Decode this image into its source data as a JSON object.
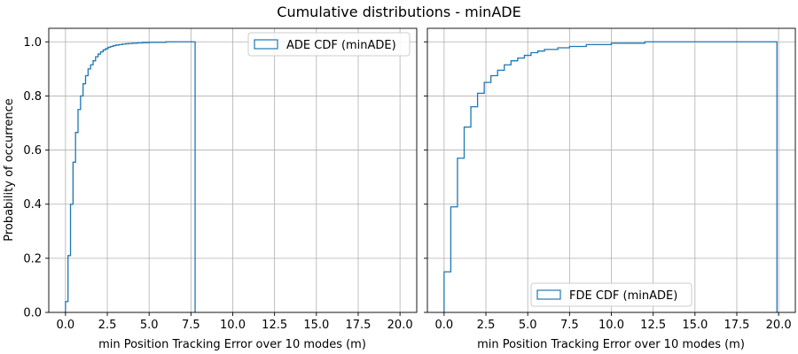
{
  "figure": {
    "title": "Cumulative distributions - minADE"
  },
  "chart_data": [
    {
      "type": "line",
      "step": "histogram-cdf",
      "xlabel": "min Position Tracking Error over 10 modes (m)",
      "ylabel": "Probability of occurrence",
      "xlim": [
        -1.0,
        21.0
      ],
      "ylim": [
        0,
        1.05
      ],
      "xticks": [
        0,
        2.5,
        5,
        7.5,
        10,
        12.5,
        15,
        17.5,
        20
      ],
      "xtick_labels": [
        "0.0",
        "2.5",
        "5.0",
        "7.5",
        "10.0",
        "12.5",
        "15.0",
        "17.5",
        "20.0"
      ],
      "yticks": [
        0,
        0.2,
        0.4,
        0.6,
        0.8,
        1.0
      ],
      "ytick_labels": [
        "0.0",
        "0.2",
        "0.4",
        "0.6",
        "0.8",
        "1.0"
      ],
      "grid": true,
      "legend": "upper right",
      "color": "#1f77b4",
      "series": [
        {
          "name": "ADE CDF (minADE)",
          "x": [
            0.0,
            0.15,
            0.3,
            0.45,
            0.6,
            0.75,
            0.9,
            1.05,
            1.2,
            1.35,
            1.5,
            1.65,
            1.8,
            1.95,
            2.1,
            2.25,
            2.4,
            2.55,
            2.7,
            2.85,
            3.0,
            3.2,
            3.4,
            3.6,
            3.8,
            4.0,
            4.3,
            4.6,
            5.0,
            6.0,
            7.75
          ],
          "y": [
            0.04,
            0.21,
            0.4,
            0.555,
            0.665,
            0.75,
            0.8,
            0.845,
            0.875,
            0.9,
            0.915,
            0.93,
            0.945,
            0.955,
            0.963,
            0.97,
            0.975,
            0.98,
            0.983,
            0.986,
            0.988,
            0.99,
            0.992,
            0.993,
            0.994,
            0.995,
            0.996,
            0.997,
            0.998,
            1.0,
            1.0
          ]
        }
      ]
    },
    {
      "type": "line",
      "step": "histogram-cdf",
      "xlabel": "min Position Tracking Error over 10 modes (m)",
      "ylabel": "",
      "xlim": [
        -1.0,
        21.0
      ],
      "ylim": [
        0,
        1.05
      ],
      "xticks": [
        0,
        2.5,
        5,
        7.5,
        10,
        12.5,
        15,
        17.5,
        20
      ],
      "xtick_labels": [
        "0.0",
        "2.5",
        "5.0",
        "7.5",
        "10.0",
        "12.5",
        "15.0",
        "17.5",
        "20.0"
      ],
      "yticks": [
        0,
        0.2,
        0.4,
        0.6,
        0.8,
        1.0
      ],
      "grid": true,
      "legend": "lower center",
      "color": "#1f77b4",
      "series": [
        {
          "name": "FDE CDF (minADE)",
          "x": [
            0.0,
            0.4,
            0.8,
            1.2,
            1.6,
            2.0,
            2.4,
            2.8,
            3.2,
            3.6,
            4.0,
            4.4,
            4.8,
            5.2,
            5.6,
            6.0,
            6.8,
            7.5,
            8.5,
            10.0,
            12.0,
            19.9
          ],
          "y": [
            0.15,
            0.39,
            0.57,
            0.685,
            0.76,
            0.81,
            0.85,
            0.875,
            0.895,
            0.915,
            0.93,
            0.94,
            0.95,
            0.96,
            0.966,
            0.972,
            0.978,
            0.983,
            0.99,
            0.995,
            1.0,
            1.0
          ]
        }
      ]
    }
  ]
}
